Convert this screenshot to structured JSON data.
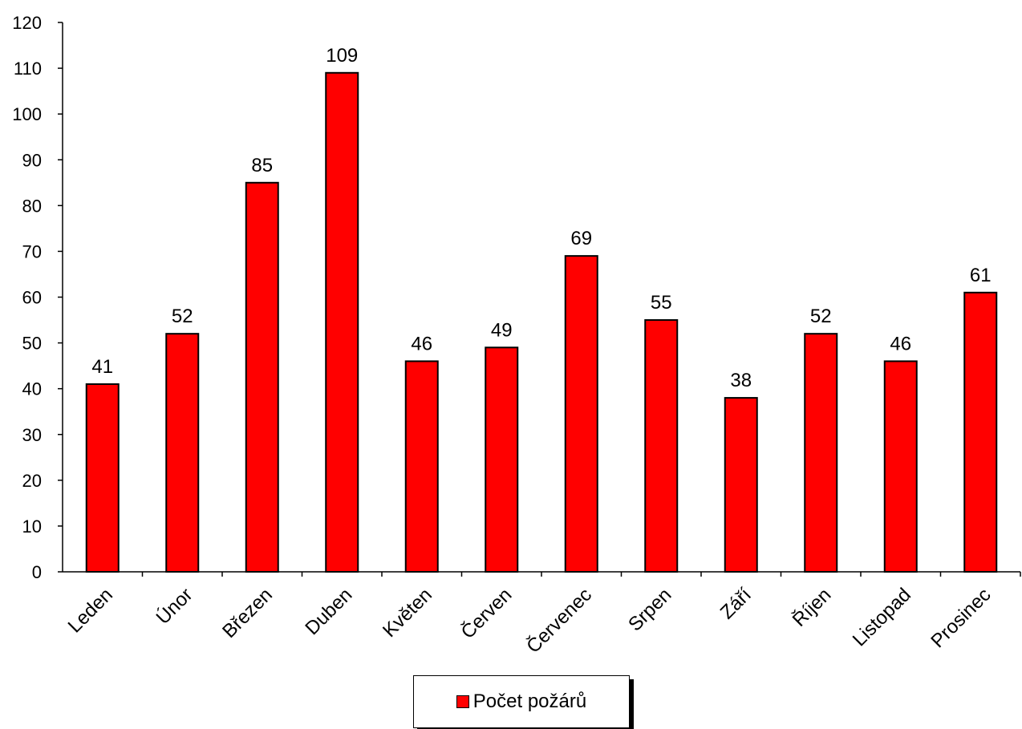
{
  "chart_data": {
    "type": "bar",
    "categories": [
      "Leden",
      "Únor",
      "Březen",
      "Duben",
      "Květen",
      "Červen",
      "Červenec",
      "Srpen",
      "Září",
      "Říjen",
      "Listopad",
      "Prosinec"
    ],
    "series": [
      {
        "name": "Počet požárů",
        "values": [
          41,
          52,
          85,
          109,
          46,
          49,
          69,
          55,
          38,
          52,
          46,
          61
        ]
      }
    ],
    "title": "",
    "xlabel": "",
    "ylabel": "",
    "ylim": [
      0,
      120
    ],
    "yticks": [
      "0",
      "10",
      "20",
      "30",
      "40",
      "50",
      "60",
      "70",
      "80",
      "90",
      "100",
      "110",
      "120"
    ],
    "data_labels": [
      "41",
      "52",
      "85",
      "109",
      "46",
      "49",
      "69",
      "55",
      "38",
      "52",
      "46",
      "61"
    ],
    "grid": false,
    "legend_position": "bottom",
    "colors": {
      "bar": "#ff0000",
      "outline": "#000000"
    }
  }
}
